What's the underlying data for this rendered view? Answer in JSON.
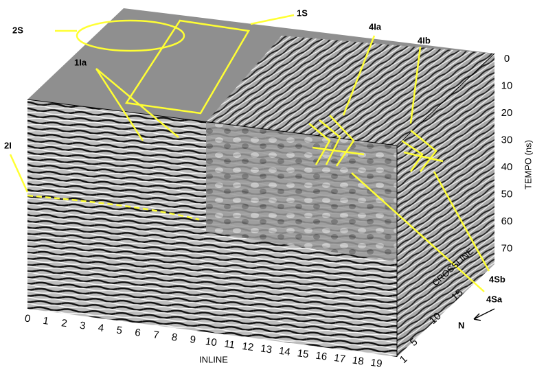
{
  "annotations": [
    "2S",
    "1S",
    "1Ia",
    "4Ia",
    "4Ib",
    "2I",
    "4Sb",
    "4Sa"
  ],
  "inline_axis": {
    "label": "INLINE",
    "ticks": [
      0,
      1,
      2,
      3,
      4,
      5,
      6,
      7,
      8,
      9,
      10,
      11,
      12,
      13,
      14,
      15,
      16,
      17,
      18,
      19
    ]
  },
  "crossline_axis": {
    "label": "CROSSLINE",
    "ticks": [
      1,
      5,
      10,
      15
    ],
    "north": "N"
  },
  "tempo_axis": {
    "label": "TEMPO (ns)",
    "ticks": [
      0,
      10,
      20,
      30,
      40,
      50,
      60,
      70
    ]
  }
}
